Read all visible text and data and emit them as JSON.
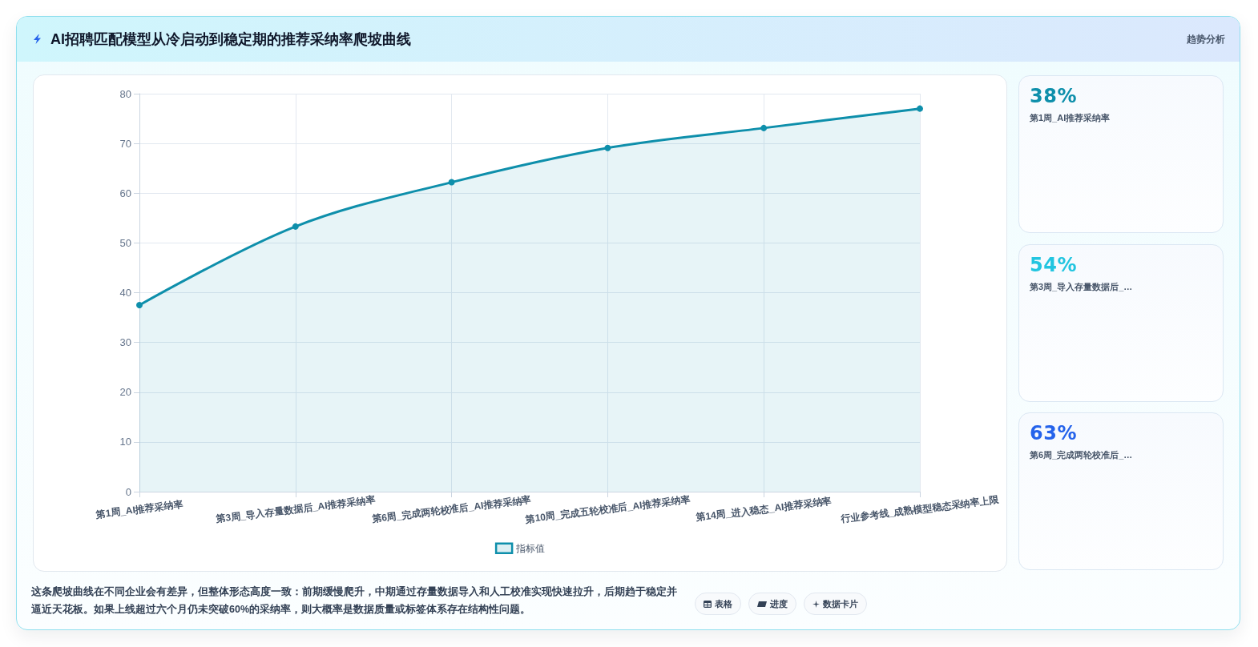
{
  "chart_data": [
    {
      "type": "area",
      "title": "AI招聘匹配模型从冷启动到稳定期的推荐采纳率爬坡曲线",
      "categories": [
        "第1周_AI推荐采纳率",
        "第3周_导入存量数据后_AI推荐采纳率",
        "第6周_完成两轮校准后_AI推荐采纳率",
        "第10周_完成五轮校准后_AI推荐采纳率",
        "第14周_进入稳态_AI推荐采纳率",
        "行业参考线_成熟模型稳态采纳率上限"
      ],
      "series": [
        {
          "name": "指标值",
          "color": "#0e8fab",
          "values": [
            37.5,
            53.3,
            62.2,
            69.1,
            73.1,
            77.0
          ]
        }
      ],
      "ylim": [
        0,
        80
      ],
      "yticks": [
        0,
        10,
        20,
        30,
        40,
        50,
        60,
        70,
        80
      ],
      "grid": true,
      "legend": "bottom",
      "marker": "circle",
      "line_style": "solid",
      "annotations": [
        "趋势分析",
        "这条爬坡曲线在不同企业会有差异，但整体形态高度一致：前期缓慢爬升，中期通过存量数据导入和人工校准实现快速拉升，后期趋于稳定并逼近天花板。如果上线超过六个月仍未突破60%的采纳率，则大概率是数据质量或标签体系存在结构性问题。",
        "表格",
        "进度",
        "数据卡片"
      ]
    },
    {
      "type": "other",
      "annotations": [
        "38%",
        "第1周_AI推荐采纳率",
        "54%",
        "第3周_导入存量数据后_…",
        "63%",
        "第6周_完成两轮校准后_…"
      ]
    }
  ]
}
